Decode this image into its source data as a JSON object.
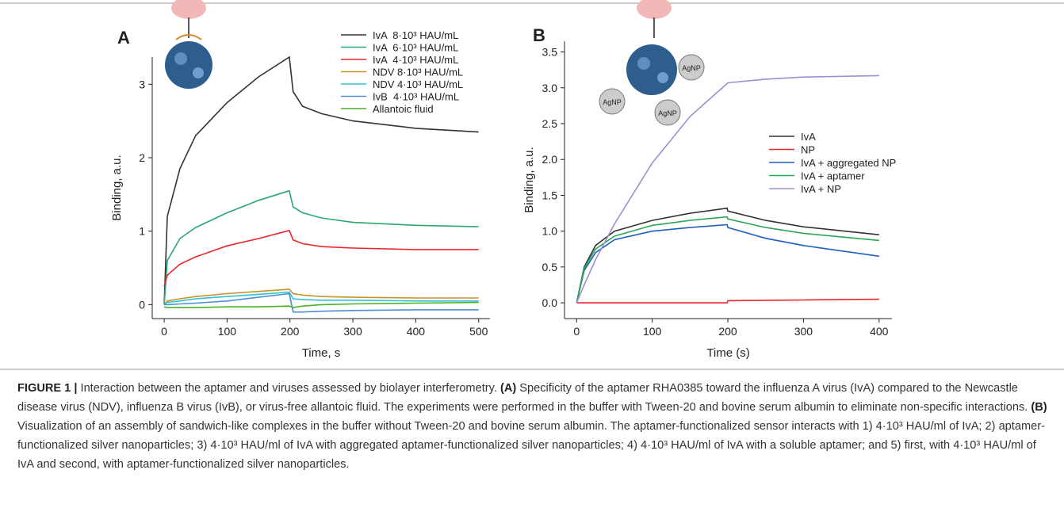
{
  "chart_data": [
    {
      "type": "line",
      "panel": "A",
      "xlabel": "Time, s",
      "ylabel": "Binding, a.u.",
      "xlim": [
        -19,
        518
      ],
      "ylim": [
        -0.19,
        3.37
      ],
      "xticks": [
        0,
        100,
        200,
        300,
        400,
        500
      ],
      "yticks": [
        0,
        1,
        2,
        3
      ],
      "legend": "upper right",
      "x": [
        0,
        5,
        25,
        50,
        100,
        150,
        199,
        205,
        220,
        250,
        300,
        400,
        500
      ],
      "series": [
        {
          "name": "IvA  8·10³ HAU/mL",
          "color": "#333333",
          "values": [
            0,
            1.2,
            1.85,
            2.3,
            2.75,
            3.1,
            3.37,
            2.9,
            2.7,
            2.6,
            2.5,
            2.4,
            2.35
          ]
        },
        {
          "name": "IvA  6·10³ HAU/mL",
          "color": "#2aa872",
          "values": [
            0,
            0.6,
            0.9,
            1.05,
            1.25,
            1.42,
            1.55,
            1.33,
            1.25,
            1.18,
            1.12,
            1.08,
            1.06
          ]
        },
        {
          "name": "IvA  4·10³ HAU/mL",
          "color": "#e8262a",
          "values": [
            0.25,
            0.4,
            0.55,
            0.65,
            0.8,
            0.9,
            1.01,
            0.88,
            0.83,
            0.79,
            0.77,
            0.75,
            0.75
          ]
        },
        {
          "name": "NDV 8·10³ HAU/mL",
          "color": "#c8922a",
          "values": [
            0,
            0.05,
            0.08,
            0.11,
            0.15,
            0.18,
            0.21,
            0.15,
            0.13,
            0.11,
            0.1,
            0.09,
            0.09
          ]
        },
        {
          "name": "NDV 4·10³ HAU/mL",
          "color": "#2ec4d6",
          "values": [
            0,
            0.03,
            0.05,
            0.08,
            0.11,
            0.14,
            0.17,
            0.08,
            0.07,
            0.06,
            0.06,
            0.05,
            0.05
          ]
        },
        {
          "name": "IvB  4·10³ HAU/mL",
          "color": "#4a8fd8",
          "values": [
            0,
            0,
            0.01,
            0.02,
            0.05,
            0.1,
            0.15,
            -0.1,
            -0.1,
            -0.09,
            -0.08,
            -0.07,
            -0.07
          ]
        },
        {
          "name": "Allantoic fluid",
          "color": "#4caf2a",
          "values": [
            -0.03,
            -0.04,
            -0.04,
            -0.04,
            -0.03,
            -0.03,
            -0.02,
            -0.04,
            -0.02,
            0,
            0.01,
            0.02,
            0.03
          ]
        }
      ]
    },
    {
      "type": "line",
      "panel": "B",
      "xlabel": "Time (s)",
      "ylabel": "Binding, a.u.",
      "xlim": [
        -16,
        417
      ],
      "ylim": [
        -0.22,
        3.65
      ],
      "xticks": [
        0,
        100,
        200,
        300,
        400
      ],
      "yticks": [
        {
          "value": 0,
          "label": "0.0"
        },
        0.5,
        {
          "value": 1,
          "label": "1.0"
        },
        1.5,
        {
          "value": 2,
          "label": "2.0"
        },
        2.5,
        {
          "value": 3,
          "label": "3.0"
        },
        3.5
      ],
      "legend": "center right",
      "x": [
        0,
        10,
        25,
        50,
        100,
        150,
        199,
        200,
        250,
        300,
        400
      ],
      "series": [
        {
          "name": "IvA",
          "color": "#333333",
          "values": [
            0,
            0.5,
            0.8,
            1.0,
            1.15,
            1.25,
            1.32,
            1.28,
            1.15,
            1.06,
            0.95
          ]
        },
        {
          "name": "NP",
          "color": "#e8262a",
          "values": [
            0,
            0,
            0,
            0,
            0,
            0,
            0,
            0.03,
            0.035,
            0.04,
            0.05
          ]
        },
        {
          "name": "IvA + aggregated NP",
          "color": "#1f5fc0",
          "values": [
            0,
            0.45,
            0.7,
            0.88,
            1.0,
            1.05,
            1.09,
            1.05,
            0.9,
            0.8,
            0.65
          ]
        },
        {
          "name": "IvA + aptamer",
          "color": "#2aa65a",
          "values": [
            0,
            0.48,
            0.75,
            0.93,
            1.08,
            1.15,
            1.2,
            1.17,
            1.05,
            0.97,
            0.87
          ]
        },
        {
          "name": "IvA + NP",
          "color": "#9e8fd0",
          "values": [
            0,
            0.25,
            0.6,
            1.1,
            1.95,
            2.6,
            3.06,
            3.07,
            3.12,
            3.15,
            3.17
          ]
        }
      ],
      "annotations": [
        "AgNP",
        "AgNP",
        "AgNP"
      ]
    }
  ],
  "caption": {
    "label": "FIGURE 1 |",
    "parts": [
      "Interaction between the aptamer and viruses assessed by biolayer interferometry. ",
      "(A)",
      " Specificity of the aptamer RHA0385 toward the influenza A virus (IvA) compared to the Newcastle disease virus (NDV), influenza B virus (IvB), or virus-free allantoic fluid. The experiments were performed in the buffer with Tween-20 and bovine serum albumin to eliminate non-specific interactions. ",
      "(B)",
      " Visualization of an assembly of sandwich-like complexes in the buffer without Tween-20 and bovine serum albumin. The aptamer-functionalized sensor interacts with 1) 4·10³ HAU/ml of IvA; 2) aptamer-functionalized silver nanoparticles; 3) 4·10³ HAU/ml of IvA with aggregated aptamer-functionalized silver nanoparticles; 4) 4·10³ HAU/ml of IvA with a soluble aptamer; and 5) first, with 4·10³ HAU/ml of IvA and second, with aptamer-functionalized silver nanoparticles."
    ]
  }
}
